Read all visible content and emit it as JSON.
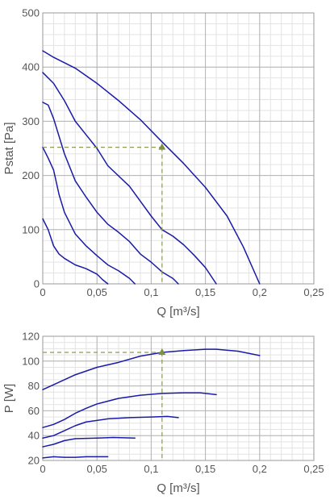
{
  "colors": {
    "curve": "#1a1aa8",
    "guide": "#8b9a55",
    "marker": "#7f8f44"
  },
  "chart_data": [
    {
      "type": "line",
      "title": "",
      "xlabel": "Q [m³/s]",
      "ylabel": "Pstat [Pa]",
      "xlim": [
        0,
        0.25
      ],
      "ylim": [
        0,
        500
      ],
      "x_ticks": [
        0,
        0.05,
        0.1,
        0.15,
        0.2,
        0.25
      ],
      "x_tick_labels": [
        "0",
        "0,05",
        "0,1",
        "0,15",
        "0,2",
        "0,25"
      ],
      "y_ticks": [
        0,
        100,
        200,
        300,
        400,
        500
      ],
      "y_tick_labels": [
        "0",
        "100",
        "200",
        "300",
        "400",
        "500"
      ],
      "grid": true,
      "operating_point": {
        "x": 0.11,
        "y": 252
      },
      "series": [
        {
          "points": [
            [
              0,
              430
            ],
            [
              0.01,
              418
            ],
            [
              0.03,
              398
            ],
            [
              0.05,
              370
            ],
            [
              0.07,
              338
            ],
            [
              0.09,
              303
            ],
            [
              0.11,
              262
            ],
            [
              0.13,
              222
            ],
            [
              0.15,
              178
            ],
            [
              0.17,
              125
            ],
            [
              0.185,
              68
            ],
            [
              0.2,
              0
            ]
          ]
        },
        {
          "points": [
            [
              0,
              390
            ],
            [
              0.01,
              370
            ],
            [
              0.02,
              338
            ],
            [
              0.03,
              300
            ],
            [
              0.04,
              275
            ],
            [
              0.05,
              250
            ],
            [
              0.06,
              218
            ],
            [
              0.08,
              180
            ],
            [
              0.1,
              125
            ],
            [
              0.11,
              100
            ],
            [
              0.12,
              88
            ],
            [
              0.13,
              72
            ],
            [
              0.14,
              52
            ],
            [
              0.15,
              30
            ],
            [
              0.16,
              0
            ]
          ]
        },
        {
          "points": [
            [
              0,
              335
            ],
            [
              0.005,
              330
            ],
            [
              0.01,
              305
            ],
            [
              0.02,
              240
            ],
            [
              0.03,
              190
            ],
            [
              0.04,
              160
            ],
            [
              0.05,
              132
            ],
            [
              0.06,
              110
            ],
            [
              0.07,
              95
            ],
            [
              0.08,
              78
            ],
            [
              0.09,
              55
            ],
            [
              0.1,
              40
            ],
            [
              0.11,
              22
            ],
            [
              0.12,
              10
            ],
            [
              0.125,
              0
            ]
          ]
        },
        {
          "points": [
            [
              0,
              252
            ],
            [
              0.005,
              232
            ],
            [
              0.01,
              210
            ],
            [
              0.015,
              165
            ],
            [
              0.02,
              132
            ],
            [
              0.03,
              92
            ],
            [
              0.04,
              70
            ],
            [
              0.05,
              52
            ],
            [
              0.06,
              35
            ],
            [
              0.07,
              24
            ],
            [
              0.08,
              10
            ],
            [
              0.085,
              0
            ]
          ]
        },
        {
          "points": [
            [
              0,
              120
            ],
            [
              0.005,
              100
            ],
            [
              0.01,
              70
            ],
            [
              0.015,
              55
            ],
            [
              0.02,
              47
            ],
            [
              0.03,
              35
            ],
            [
              0.04,
              28
            ],
            [
              0.05,
              18
            ],
            [
              0.055,
              8
            ],
            [
              0.06,
              0
            ]
          ]
        }
      ]
    },
    {
      "type": "line",
      "title": "",
      "xlabel": "Q [m³/s]",
      "ylabel": "P [W]",
      "xlim": [
        0,
        0.25
      ],
      "ylim": [
        20,
        120
      ],
      "x_ticks": [
        0,
        0.05,
        0.1,
        0.15,
        0.2,
        0.25
      ],
      "x_tick_labels": [
        "0",
        "0,05",
        "0,1",
        "0,15",
        "0,2",
        "0,25"
      ],
      "y_ticks": [
        20,
        40,
        60,
        80,
        100,
        120
      ],
      "y_tick_labels": [
        "20",
        "40",
        "60",
        "80",
        "100",
        "120"
      ],
      "grid": true,
      "operating_point": {
        "x": 0.11,
        "y": 107
      },
      "series": [
        {
          "points": [
            [
              0,
              77
            ],
            [
              0.01,
              81
            ],
            [
              0.03,
              89
            ],
            [
              0.05,
              95
            ],
            [
              0.07,
              99
            ],
            [
              0.09,
              104
            ],
            [
              0.11,
              107
            ],
            [
              0.13,
              108.5
            ],
            [
              0.15,
              109.5
            ],
            [
              0.16,
              109.5
            ],
            [
              0.18,
              108
            ],
            [
              0.2,
              104.5
            ]
          ]
        },
        {
          "points": [
            [
              0,
              46.5
            ],
            [
              0.01,
              49
            ],
            [
              0.02,
              53
            ],
            [
              0.03,
              58
            ],
            [
              0.04,
              62
            ],
            [
              0.05,
              65.5
            ],
            [
              0.07,
              70
            ],
            [
              0.09,
              72.5
            ],
            [
              0.11,
              74
            ],
            [
              0.13,
              74.5
            ],
            [
              0.145,
              74.5
            ],
            [
              0.16,
              73
            ]
          ]
        },
        {
          "points": [
            [
              0,
              38
            ],
            [
              0.01,
              40
            ],
            [
              0.02,
              44
            ],
            [
              0.03,
              48
            ],
            [
              0.04,
              51
            ],
            [
              0.06,
              53.5
            ],
            [
              0.08,
              54.5
            ],
            [
              0.1,
              55
            ],
            [
              0.115,
              55.5
            ],
            [
              0.125,
              54.5
            ]
          ]
        },
        {
          "points": [
            [
              0,
              31
            ],
            [
              0.01,
              33
            ],
            [
              0.02,
              36
            ],
            [
              0.03,
              37.5
            ],
            [
              0.05,
              38
            ],
            [
              0.065,
              38.5
            ],
            [
              0.085,
              38
            ]
          ]
        },
        {
          "points": [
            [
              0,
              22
            ],
            [
              0.01,
              23
            ],
            [
              0.02,
              22.5
            ],
            [
              0.03,
              22.5
            ],
            [
              0.04,
              23
            ],
            [
              0.05,
              23
            ],
            [
              0.06,
              23
            ]
          ]
        }
      ]
    }
  ]
}
